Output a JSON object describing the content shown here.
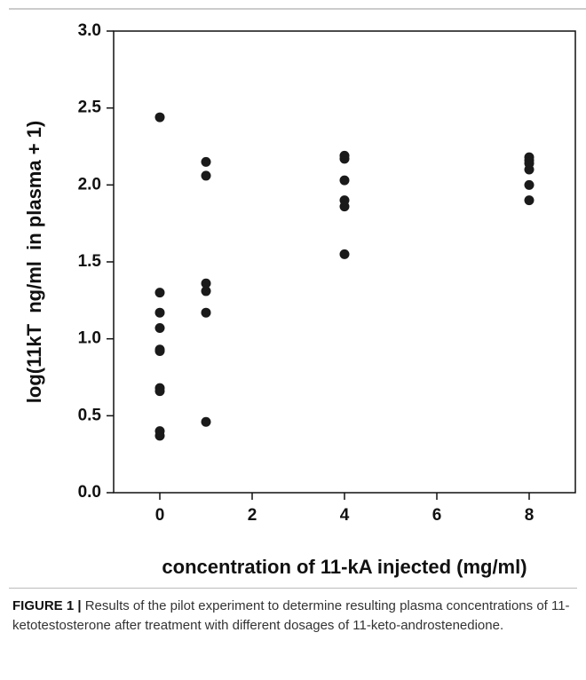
{
  "chart_data": {
    "type": "scatter",
    "x_label": "concentration of 11-kA injected (mg/ml)",
    "y_label": "log(11kT  ng/ml  in plasma + 1)",
    "x": [
      0,
      0,
      0,
      0,
      0,
      0,
      0,
      0,
      0,
      0,
      1,
      1,
      1,
      1,
      1,
      1,
      4,
      4,
      4,
      4,
      4,
      4,
      8,
      8,
      8,
      8,
      8,
      8
    ],
    "values": [
      2.44,
      1.3,
      1.17,
      1.07,
      0.93,
      0.92,
      0.68,
      0.66,
      0.4,
      0.37,
      2.15,
      2.06,
      1.36,
      1.31,
      1.17,
      0.46,
      2.19,
      2.17,
      2.03,
      1.9,
      1.86,
      1.55,
      2.18,
      2.16,
      2.14,
      2.1,
      2.0,
      1.9
    ],
    "color": "#1a1a1a",
    "xlim": [
      -1,
      9
    ],
    "xticks": [
      0,
      2,
      4,
      6,
      8
    ],
    "ylim": [
      0,
      3
    ],
    "yticks": [
      {
        "value": 0,
        "label": "0.0"
      },
      0.5,
      {
        "value": 1,
        "label": "1.0"
      },
      1.5,
      {
        "value": 2,
        "label": "2.0"
      },
      2.5,
      {
        "value": 3,
        "label": "3.0"
      }
    ],
    "grid": false,
    "caption_label": "FIGURE 1 |",
    "caption": "Results of the pilot experiment to determine resulting plasma concentrations of 11-ketotestosterone after treatment with different dosages of 11-keto-androstenedione."
  }
}
